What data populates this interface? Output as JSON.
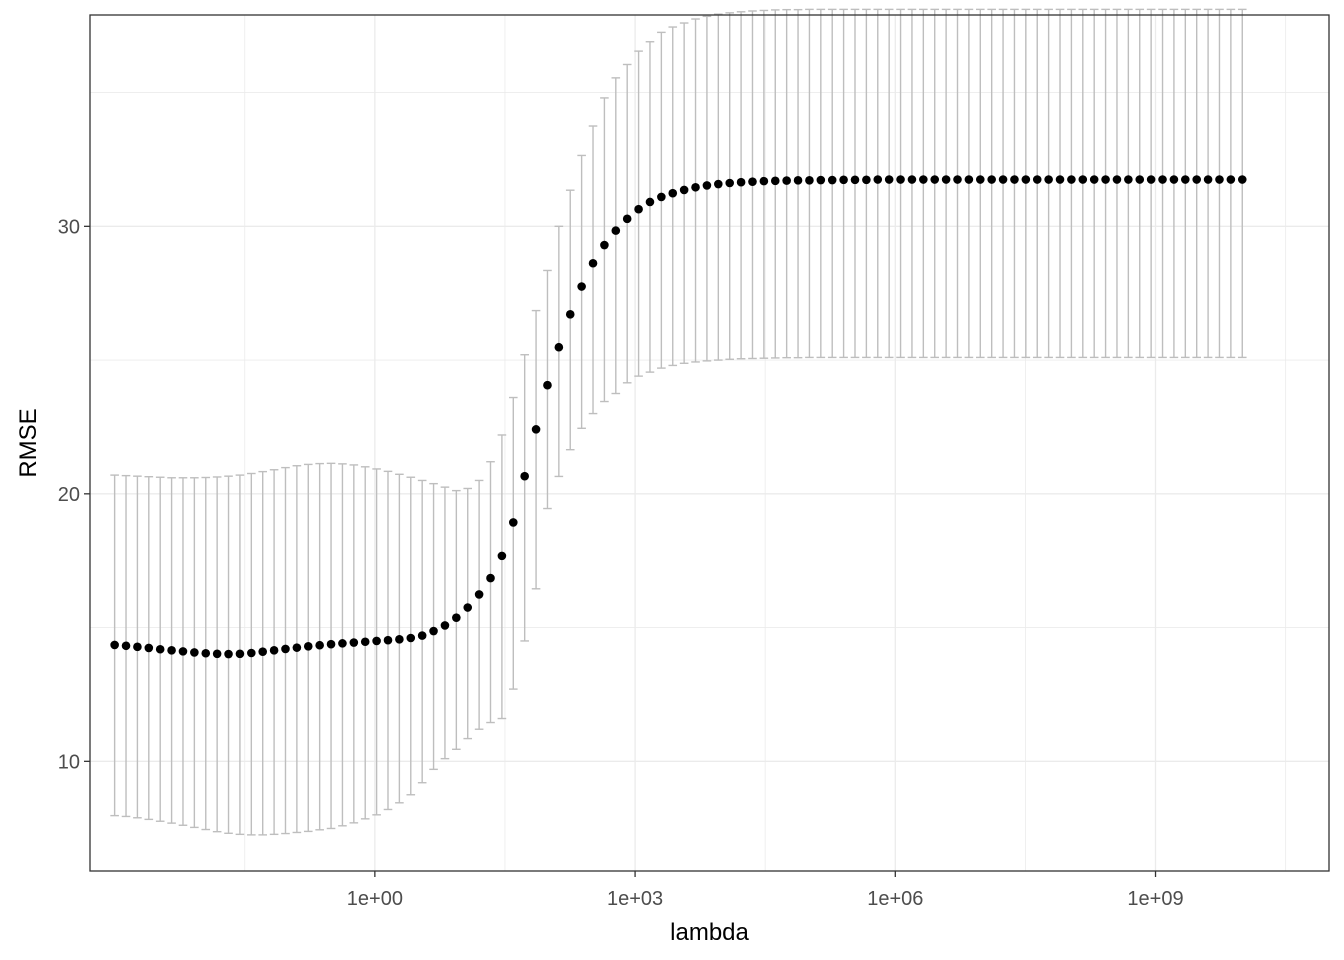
{
  "chart_data": {
    "type": "scatter",
    "title": "",
    "xlabel": "lambda",
    "ylabel": "RMSE",
    "x_scale": "log10",
    "x_ticks": [
      1,
      1000,
      1000000,
      1000000000
    ],
    "x_tick_labels": [
      "1e+00",
      "1e+03",
      "1e+06",
      "1e+09"
    ],
    "y_ticks": [
      10,
      20,
      30
    ],
    "y_tick_labels": [
      "10",
      "20",
      "30"
    ],
    "xlim": [
      0.00052,
      100000000000.0
    ],
    "ylim": [
      5.9,
      37.9
    ],
    "grid": true,
    "legend": "none",
    "colors": {
      "points": "#000000",
      "errorbars": "#bebebe",
      "grid": "#ebebeb",
      "panel_border": "#333333"
    },
    "series": [
      {
        "lambda_range": [
          0.001,
          10000000000
        ],
        "n_points": 100,
        "y": [
          14.35,
          14.32,
          14.28,
          14.24,
          14.19,
          14.15,
          14.11,
          14.07,
          14.04,
          14.02,
          14.01,
          14.02,
          14.05,
          14.1,
          14.15,
          14.2,
          14.25,
          14.3,
          14.34,
          14.38,
          14.41,
          14.44,
          14.47,
          14.5,
          14.53,
          14.56,
          14.61,
          14.7,
          14.87,
          15.08,
          15.37,
          15.75,
          16.24,
          16.85,
          17.68,
          18.93,
          20.66,
          22.41,
          24.06,
          25.48,
          26.71,
          27.75,
          28.62,
          29.3,
          29.84,
          30.28,
          30.64,
          30.91,
          31.1,
          31.24,
          31.36,
          31.46,
          31.53,
          31.58,
          31.62,
          31.65,
          31.67,
          31.69,
          31.7,
          31.71,
          31.72,
          31.72,
          31.73,
          31.73,
          31.74,
          31.74,
          31.74,
          31.75,
          31.75,
          31.75,
          31.75,
          31.75,
          31.75,
          31.75,
          31.75,
          31.75,
          31.75,
          31.75,
          31.75,
          31.75,
          31.75,
          31.75,
          31.75,
          31.75,
          31.75,
          31.75,
          31.75,
          31.75,
          31.75,
          31.75,
          31.75,
          31.75,
          31.75,
          31.75,
          31.75,
          31.75,
          31.75,
          31.75,
          31.75,
          31.75
        ],
        "ymin": [
          7.97,
          7.94,
          7.89,
          7.83,
          7.76,
          7.69,
          7.61,
          7.53,
          7.45,
          7.37,
          7.31,
          7.27,
          7.25,
          7.25,
          7.27,
          7.3,
          7.34,
          7.38,
          7.44,
          7.49,
          7.59,
          7.7,
          7.85,
          8.0,
          8.2,
          8.45,
          8.75,
          9.2,
          9.7,
          10.1,
          10.45,
          10.85,
          11.2,
          11.45,
          11.6,
          12.7,
          14.5,
          16.45,
          19.45,
          20.65,
          21.65,
          22.45,
          23.0,
          23.45,
          23.75,
          24.15,
          24.4,
          24.55,
          24.7,
          24.8,
          24.88,
          24.93,
          24.97,
          25.0,
          25.03,
          25.05,
          25.06,
          25.07,
          25.08,
          25.09,
          25.09,
          25.1,
          25.1,
          25.1,
          25.1,
          25.1,
          25.1,
          25.1,
          25.1,
          25.1,
          25.1,
          25.1,
          25.1,
          25.1,
          25.1,
          25.1,
          25.1,
          25.1,
          25.1,
          25.1,
          25.1,
          25.1,
          25.1,
          25.1,
          25.1,
          25.1,
          25.1,
          25.1,
          25.1,
          25.1,
          25.1,
          25.1,
          25.1,
          25.1,
          25.1,
          25.1,
          25.1,
          25.1,
          25.1,
          25.1
        ],
        "ymax": [
          20.7,
          20.68,
          20.66,
          20.64,
          20.62,
          20.6,
          20.6,
          20.6,
          20.61,
          20.63,
          20.66,
          20.7,
          20.76,
          20.83,
          20.9,
          20.98,
          21.05,
          21.1,
          21.13,
          21.14,
          21.12,
          21.08,
          21.01,
          20.93,
          20.84,
          20.73,
          20.62,
          20.5,
          20.38,
          20.25,
          20.12,
          20.2,
          20.5,
          21.2,
          22.2,
          23.6,
          25.2,
          26.85,
          28.35,
          30.0,
          31.35,
          32.65,
          33.75,
          34.8,
          35.55,
          36.05,
          36.55,
          36.9,
          37.25,
          37.45,
          37.6,
          37.75,
          37.85,
          37.93,
          37.98,
          38.02,
          38.05,
          38.07,
          38.09,
          38.1,
          38.1,
          38.11,
          38.11,
          38.11,
          38.11,
          38.11,
          38.11,
          38.11,
          38.11,
          38.11,
          38.11,
          38.11,
          38.11,
          38.11,
          38.11,
          38.11,
          38.11,
          38.11,
          38.11,
          38.11,
          38.11,
          38.11,
          38.11,
          38.11,
          38.11,
          38.11,
          38.11,
          38.11,
          38.11,
          38.11,
          38.11,
          38.11,
          38.11,
          38.11,
          38.11,
          38.11,
          38.11,
          38.11,
          38.11,
          38.11
        ]
      }
    ]
  }
}
